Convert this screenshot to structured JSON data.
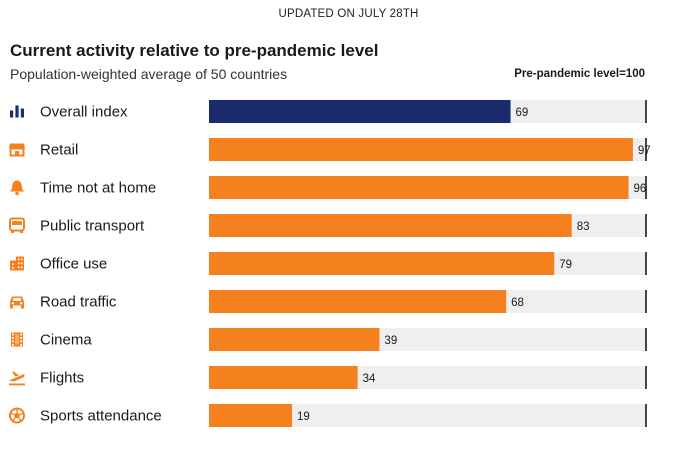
{
  "header": {
    "updated": "UPDATED ON JULY 28TH"
  },
  "chart_data": {
    "type": "bar",
    "orientation": "horizontal",
    "title": "Current activity relative to pre-pandemic level",
    "subtitle": "Population-weighted average of 50 countries",
    "reference_label": "Pre-pandemic level=100",
    "reference_value": 100,
    "xlim": [
      0,
      100
    ],
    "categories": [
      "Overall index",
      "Retail",
      "Time not at home",
      "Public transport",
      "Office use",
      "Road traffic",
      "Cinema",
      "Flights",
      "Sports attendance"
    ],
    "values": [
      69,
      97,
      96,
      83,
      79,
      68,
      39,
      34,
      19
    ],
    "value_labels": [
      "69",
      "97",
      "96",
      "83",
      "79",
      "68",
      "39",
      "34",
      "19"
    ],
    "icons": [
      "bar-chart-icon",
      "storefront-icon",
      "bell-icon",
      "bus-icon",
      "office-building-icon",
      "car-icon",
      "film-icon",
      "airplane-icon",
      "ball-icon"
    ],
    "colors": {
      "highlight": "#1c2a6e",
      "bar": "#f5801e",
      "track": "#efefef",
      "reference_line": "#1a1a1a",
      "icon": "#f5801e"
    }
  }
}
